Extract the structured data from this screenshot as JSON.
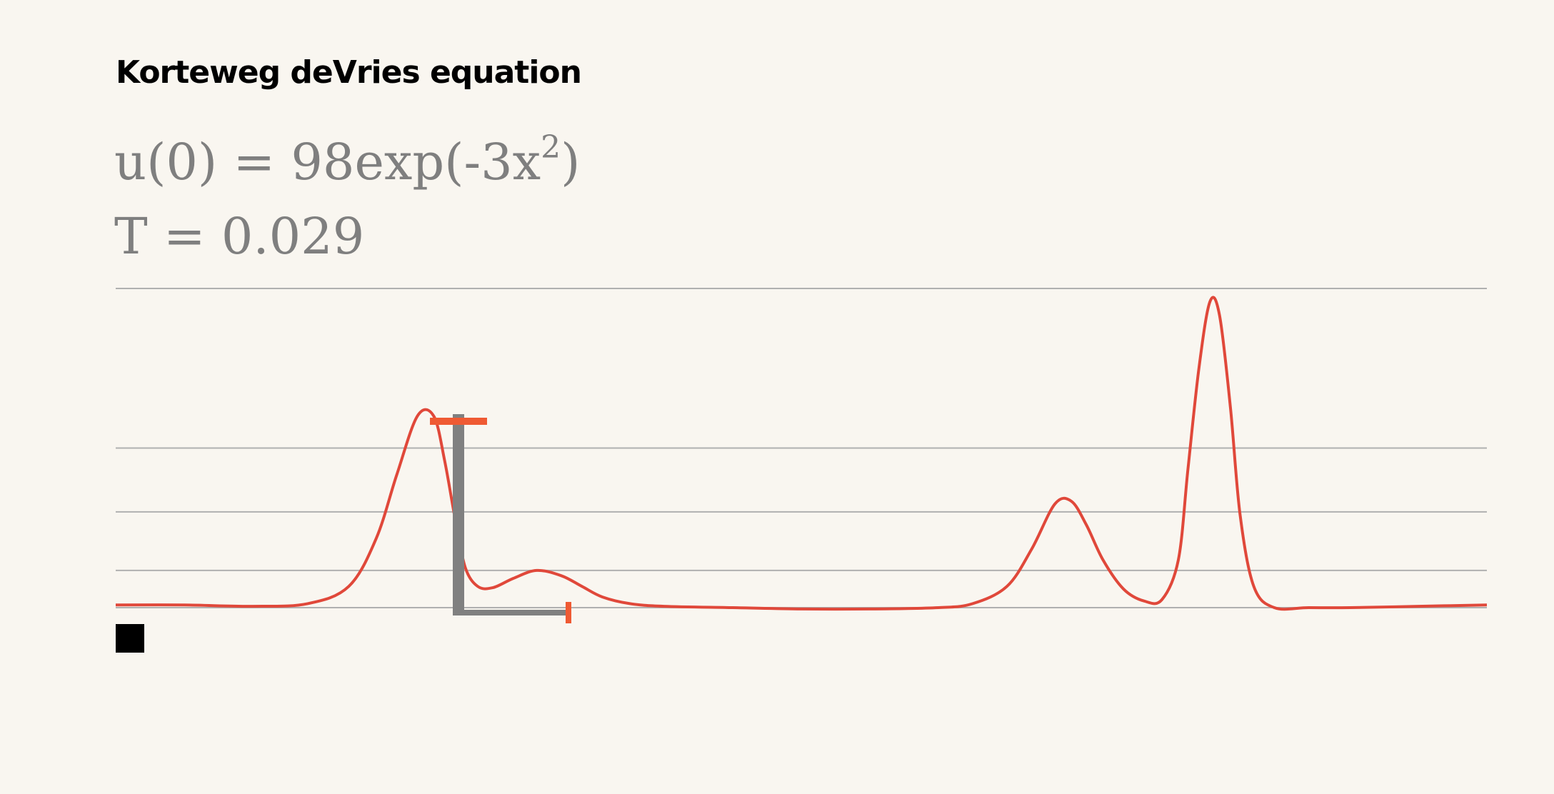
{
  "title": "Korteweg deVries equation",
  "initial_condition": {
    "prefix": "u(0) = 98exp(-3x",
    "exponent": "2",
    "suffix": ")"
  },
  "time_label": "T = 0.029",
  "controls": {
    "stop_icon": "stop-icon"
  },
  "colors": {
    "background": "#f9f6f0",
    "curve": "#e0483a",
    "gridline": "#b0b0b0",
    "scale_bar": "#808080",
    "scale_tick": "#ef5a33"
  },
  "chart_data": {
    "type": "line",
    "title": "",
    "xlabel": "",
    "ylabel": "",
    "grid": "horizontal",
    "gridlines_y": [
      0,
      14,
      36,
      60,
      120
    ],
    "xlim": [
      0,
      1
    ],
    "ylim": [
      0,
      120
    ],
    "series": [
      {
        "x": [
          0.0,
          0.05,
          0.1,
          0.14,
          0.17,
          0.19,
          0.205,
          0.22,
          0.232,
          0.24,
          0.248,
          0.255,
          0.264,
          0.275,
          0.29,
          0.307,
          0.325,
          0.34,
          0.355,
          0.375,
          0.4,
          0.45,
          0.5,
          0.55,
          0.6,
          0.625,
          0.65,
          0.668,
          0.685,
          0.697,
          0.708,
          0.72,
          0.735,
          0.75,
          0.763,
          0.775,
          0.782,
          0.79,
          0.798,
          0.805,
          0.813,
          0.82,
          0.83,
          0.845,
          0.87,
          0.9,
          0.95,
          1.0
        ],
        "y": [
          1.0,
          1.0,
          0.5,
          1.5,
          8,
          26,
          50,
          72,
          72,
          55,
          32,
          15,
          8,
          7.5,
          11,
          14,
          12,
          8,
          4,
          1.5,
          0.5,
          0,
          -0.5,
          -0.5,
          0,
          1.5,
          8,
          22,
          39,
          40,
          31,
          18,
          7,
          2.5,
          3,
          18,
          52,
          90,
          115,
          110,
          75,
          35,
          8,
          0,
          0,
          0,
          0.5,
          1.0
        ]
      }
    ],
    "scale_bar_labels": []
  }
}
